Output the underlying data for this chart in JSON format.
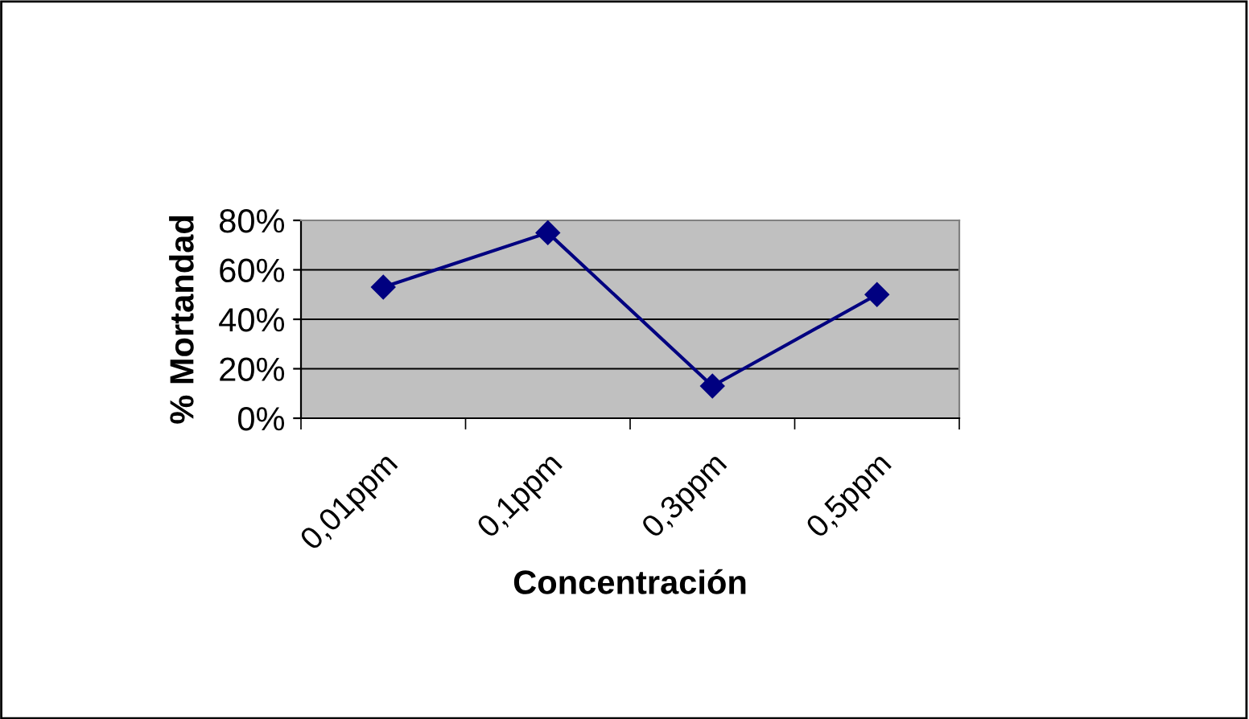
{
  "chart_data": {
    "type": "line",
    "xlabel": "Concentración",
    "ylabel": "% Mortandad",
    "categories": [
      "0,01ppm",
      "0,1ppm",
      "0,3ppm",
      "0,5ppm"
    ],
    "series": [
      {
        "color": "#000080",
        "values": [
          53,
          75,
          13,
          50
        ]
      }
    ],
    "ylim": [
      0,
      80
    ],
    "yticks": [
      {
        "value": 0,
        "label": "0%"
      },
      {
        "value": 20,
        "label": "20%"
      },
      {
        "value": 40,
        "label": "40%"
      },
      {
        "value": 60,
        "label": "60%"
      },
      {
        "value": 80,
        "label": "80%"
      }
    ],
    "grid": "y",
    "marker": "diamond",
    "line_style": "solid"
  }
}
